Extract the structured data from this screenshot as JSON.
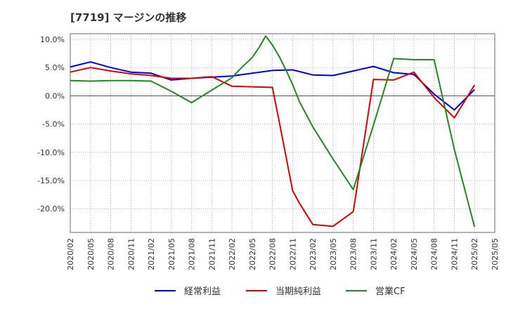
{
  "chart_data": {
    "type": "line",
    "title": "[7719]  マージンの推移",
    "x": [
      "2020/02",
      "2020/05",
      "2020/08",
      "2020/11",
      "2021/02",
      "2021/05",
      "2021/08",
      "2021/11",
      "2022/02",
      "2022/05",
      "2022/08",
      "2022/11",
      "2023/02",
      "2023/05",
      "2023/08",
      "2023/11",
      "2024/02",
      "2024/05",
      "2024/08",
      "2024/11",
      "2025/02"
    ],
    "x_tick_labels": [
      "2020/02",
      "2020/05",
      "2020/08",
      "2020/11",
      "2021/02",
      "2021/05",
      "2021/08",
      "2021/11",
      "2022/02",
      "2022/05",
      "2022/08",
      "2022/11",
      "2023/02",
      "2023/05",
      "2023/08",
      "2023/11",
      "2024/02",
      "2024/05",
      "2024/08",
      "2024/11",
      "2025/02",
      "2025/05"
    ],
    "y_ticks": [
      10,
      5,
      0,
      -5,
      -10,
      -15,
      -20
    ],
    "y_tick_labels": [
      "10.0%",
      "5.0%",
      "0.0%",
      "-5.0%",
      "-10.0%",
      "-15.0%",
      "-20.0%"
    ],
    "ylim": [
      -24.2,
      11
    ],
    "grid": true,
    "legend_position": "bottom",
    "series": [
      {
        "name": "経常利益",
        "color": "#0000dd",
        "x": [
          "2020/02",
          "2020/05",
          "2020/08",
          "2020/11",
          "2021/02",
          "2021/05",
          "2021/08",
          "2021/11",
          "2022/02",
          "2022/05",
          "2022/08",
          "2022/11",
          "2023/02",
          "2023/05",
          "2023/08",
          "2023/11",
          "2024/02",
          "2024/05",
          "2024/08",
          "2024/11",
          "2025/02"
        ],
        "values": [
          5.1,
          6.0,
          5.0,
          4.2,
          4.0,
          2.8,
          3.1,
          3.3,
          3.5,
          4.0,
          4.5,
          4.6,
          3.7,
          3.6,
          4.4,
          5.2,
          4.1,
          3.8,
          0.3,
          -2.5,
          1.1
        ]
      },
      {
        "name": "当期純利益",
        "color": "#dd0000",
        "x": [
          "2020/02",
          "2020/05",
          "2020/08",
          "2020/11",
          "2021/02",
          "2021/05",
          "2021/08",
          "2021/11",
          "2022/02",
          "2022/05",
          "2022/08",
          "2022/09",
          "2022/11",
          "2022/12",
          "2023/02",
          "2023/05",
          "2023/08",
          "2023/11",
          "2024/02",
          "2024/05",
          "2024/08",
          "2024/11",
          "2025/02"
        ],
        "values": [
          4.2,
          5.0,
          4.4,
          3.9,
          3.6,
          3.1,
          3.1,
          3.4,
          1.7,
          1.6,
          1.5,
          -4.5,
          -16.8,
          -19.0,
          -22.8,
          -23.1,
          -20.5,
          2.9,
          2.8,
          4.2,
          -0.3,
          -3.9,
          1.9
        ]
      },
      {
        "name": "営業CF",
        "color": "#228822",
        "x": [
          "2020/02",
          "2020/05",
          "2020/08",
          "2020/11",
          "2021/02",
          "2021/05",
          "2021/08",
          "2021/11",
          "2022/02",
          "2022/03",
          "2022/05",
          "2022/06",
          "2022/07",
          "2022/08",
          "2022/09",
          "2022/10",
          "2022/11",
          "2022/12",
          "2023/02",
          "2023/05",
          "2023/08",
          "2023/11",
          "2024/02",
          "2024/05",
          "2024/08",
          "2024/11",
          "2025/02"
        ],
        "values": [
          2.7,
          2.6,
          2.7,
          2.7,
          2.6,
          0.8,
          -1.2,
          1.0,
          3.2,
          4.5,
          6.8,
          8.5,
          10.6,
          9.0,
          7.0,
          4.6,
          2.0,
          -1.0,
          -5.5,
          -11.2,
          -16.6,
          -5.2,
          6.6,
          6.4,
          6.4,
          -9.5,
          -23.2
        ]
      }
    ]
  }
}
